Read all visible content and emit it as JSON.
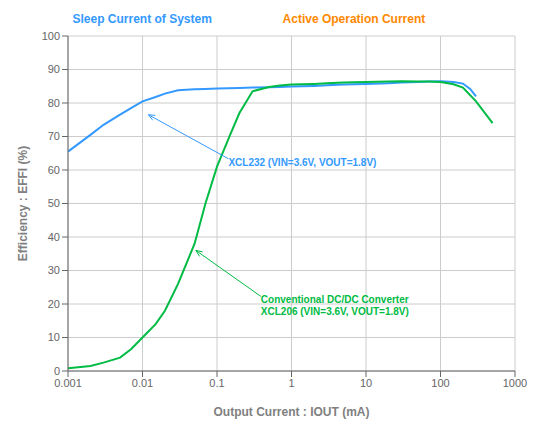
{
  "chart_data": {
    "type": "line",
    "xlabel": "Output Current : IOUT (mA)",
    "ylabel": "Efficiency : EFFI (%)",
    "log": "x",
    "grid": true,
    "xlim": [
      0.001,
      1000
    ],
    "ylim": [
      0,
      100
    ],
    "xticks": [
      0.001,
      0.01,
      0.1,
      1,
      10,
      100,
      1000
    ],
    "yticks": [
      0,
      10,
      20,
      30,
      40,
      50,
      60,
      70,
      80,
      90,
      100
    ],
    "series": [
      {
        "color": "#3399FF",
        "x": [
          0.001,
          0.002,
          0.003,
          0.005,
          0.007,
          0.01,
          0.015,
          0.02,
          0.03,
          0.05,
          0.07,
          0.1,
          0.2,
          0.3,
          0.5,
          0.7,
          1.0,
          2.0,
          3.0,
          5.0,
          7.0,
          10.0,
          20.0,
          30.0,
          50.0,
          70.0,
          100.0,
          150.0,
          200.0,
          250.0,
          300.0
        ],
        "values": [
          65.5,
          70.5,
          73.5,
          76.5,
          78.5,
          80.5,
          81.8,
          82.8,
          83.8,
          84.1,
          84.2,
          84.3,
          84.5,
          84.6,
          84.7,
          84.8,
          84.9,
          85.1,
          85.3,
          85.5,
          85.6,
          85.7,
          85.9,
          86.1,
          86.3,
          86.4,
          86.5,
          86.3,
          85.8,
          84.2,
          82.0
        ]
      },
      {
        "color": "#00BB44",
        "x": [
          0.001,
          0.002,
          0.003,
          0.005,
          0.007,
          0.01,
          0.015,
          0.02,
          0.03,
          0.05,
          0.07,
          0.1,
          0.15,
          0.2,
          0.3,
          0.5,
          0.7,
          1.0,
          2.0,
          3.0,
          5.0,
          7.0,
          10.0,
          20.0,
          30.0,
          50.0,
          70.0,
          100.0,
          150.0,
          200.0,
          300.0,
          500.0
        ],
        "values": [
          0.8,
          1.5,
          2.5,
          4.0,
          6.5,
          10.0,
          14.0,
          18.0,
          26.0,
          38.0,
          50.0,
          61.0,
          70.5,
          77.0,
          83.5,
          84.8,
          85.2,
          85.5,
          85.7,
          85.9,
          86.1,
          86.2,
          86.3,
          86.4,
          86.5,
          86.4,
          86.4,
          86.3,
          85.6,
          84.6,
          80.5,
          74.0
        ]
      }
    ],
    "annotations": [
      {
        "text": "Sleep Current of System",
        "color": "#3399FF"
      },
      {
        "text": "Active Operation Current",
        "color": "#FF8800"
      },
      {
        "text": "XCL232 (VIN=3.6V, VOUT=1.8V)",
        "color": "#3399FF",
        "x": 0.012,
        "y": 76.5
      },
      {
        "text": "Conventional DC/DC Converter\nXCL206 (VIN=3.6V, VOUT=1.8V)",
        "color": "#00BB44",
        "x": 0.052,
        "y": 36.0
      }
    ]
  }
}
